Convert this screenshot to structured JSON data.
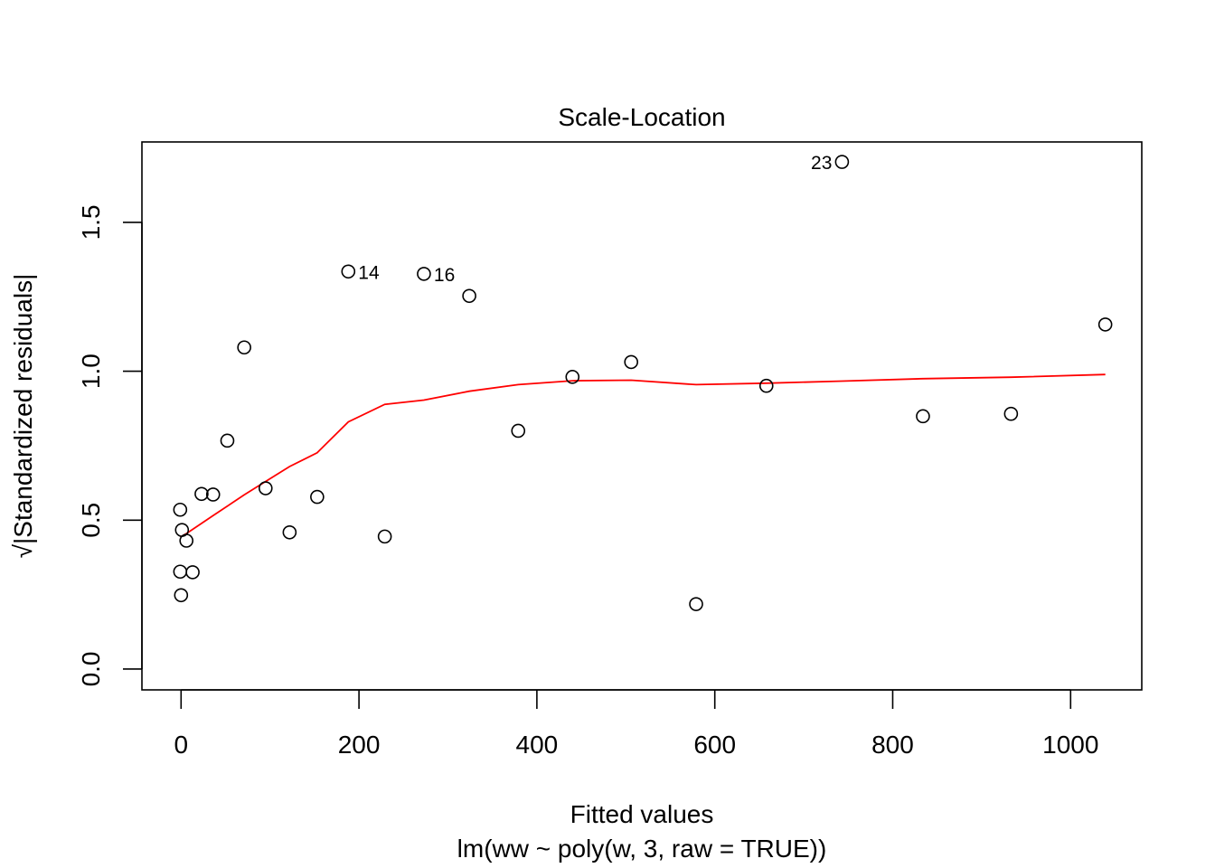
{
  "chart_data": {
    "type": "scatter",
    "title": "Scale-Location",
    "xlabel": "Fitted values",
    "xsublabel": "lm(ww ~ poly(w, 3, raw = TRUE))",
    "ylabel": "√|Standardized residuals|",
    "xlim": [
      -44,
      1080
    ],
    "ylim": [
      -0.07,
      1.77
    ],
    "x_ticks": [
      0,
      200,
      400,
      600,
      800,
      1000
    ],
    "x_tick_labels": [
      "0",
      "200",
      "400",
      "600",
      "800",
      "1000"
    ],
    "y_ticks": [
      0.0,
      0.5,
      1.0,
      1.5
    ],
    "y_tick_labels": [
      "0.0",
      "0.5",
      "1.0",
      "1.5"
    ],
    "grid": false,
    "series": [
      {
        "kind": "points",
        "marker": "open-circle",
        "color": "#000000",
        "points": [
          {
            "x": -1,
            "y": 0.535
          },
          {
            "x": -1,
            "y": 0.327
          },
          {
            "x": 0,
            "y": 0.248
          },
          {
            "x": 1,
            "y": 0.467
          },
          {
            "x": 6,
            "y": 0.431
          },
          {
            "x": 13,
            "y": 0.325
          },
          {
            "x": 23,
            "y": 0.588
          },
          {
            "x": 36,
            "y": 0.586
          },
          {
            "x": 52,
            "y": 0.767
          },
          {
            "x": 71,
            "y": 1.08
          },
          {
            "x": 95,
            "y": 0.607
          },
          {
            "x": 122,
            "y": 0.459
          },
          {
            "x": 153,
            "y": 0.578
          },
          {
            "x": 188,
            "y": 1.335
          },
          {
            "x": 229,
            "y": 0.445
          },
          {
            "x": 273,
            "y": 1.327
          },
          {
            "x": 324,
            "y": 1.253
          },
          {
            "x": 379,
            "y": 0.8
          },
          {
            "x": 440,
            "y": 0.981
          },
          {
            "x": 506,
            "y": 1.031
          },
          {
            "x": 579,
            "y": 0.218
          },
          {
            "x": 658,
            "y": 0.951
          },
          {
            "x": 743,
            "y": 1.703
          },
          {
            "x": 834,
            "y": 0.849
          },
          {
            "x": 933,
            "y": 0.857
          },
          {
            "x": 1039,
            "y": 1.157
          }
        ]
      },
      {
        "kind": "smoother",
        "color": "#ff0000",
        "points": [
          {
            "x": -1,
            "y": 0.443
          },
          {
            "x": 6,
            "y": 0.455
          },
          {
            "x": 36,
            "y": 0.515
          },
          {
            "x": 71,
            "y": 0.585
          },
          {
            "x": 95,
            "y": 0.63
          },
          {
            "x": 122,
            "y": 0.68
          },
          {
            "x": 153,
            "y": 0.726
          },
          {
            "x": 188,
            "y": 0.83
          },
          {
            "x": 229,
            "y": 0.889
          },
          {
            "x": 273,
            "y": 0.903
          },
          {
            "x": 324,
            "y": 0.933
          },
          {
            "x": 379,
            "y": 0.955
          },
          {
            "x": 440,
            "y": 0.968
          },
          {
            "x": 506,
            "y": 0.97
          },
          {
            "x": 579,
            "y": 0.955
          },
          {
            "x": 658,
            "y": 0.96
          },
          {
            "x": 743,
            "y": 0.967
          },
          {
            "x": 834,
            "y": 0.975
          },
          {
            "x": 933,
            "y": 0.98
          },
          {
            "x": 1039,
            "y": 0.989
          }
        ]
      }
    ],
    "annotations": [
      {
        "text": "14",
        "x": 188,
        "y": 1.335,
        "side": "right"
      },
      {
        "text": "16",
        "x": 273,
        "y": 1.327,
        "side": "right"
      },
      {
        "text": "23",
        "x": 743,
        "y": 1.703,
        "side": "left"
      }
    ]
  }
}
